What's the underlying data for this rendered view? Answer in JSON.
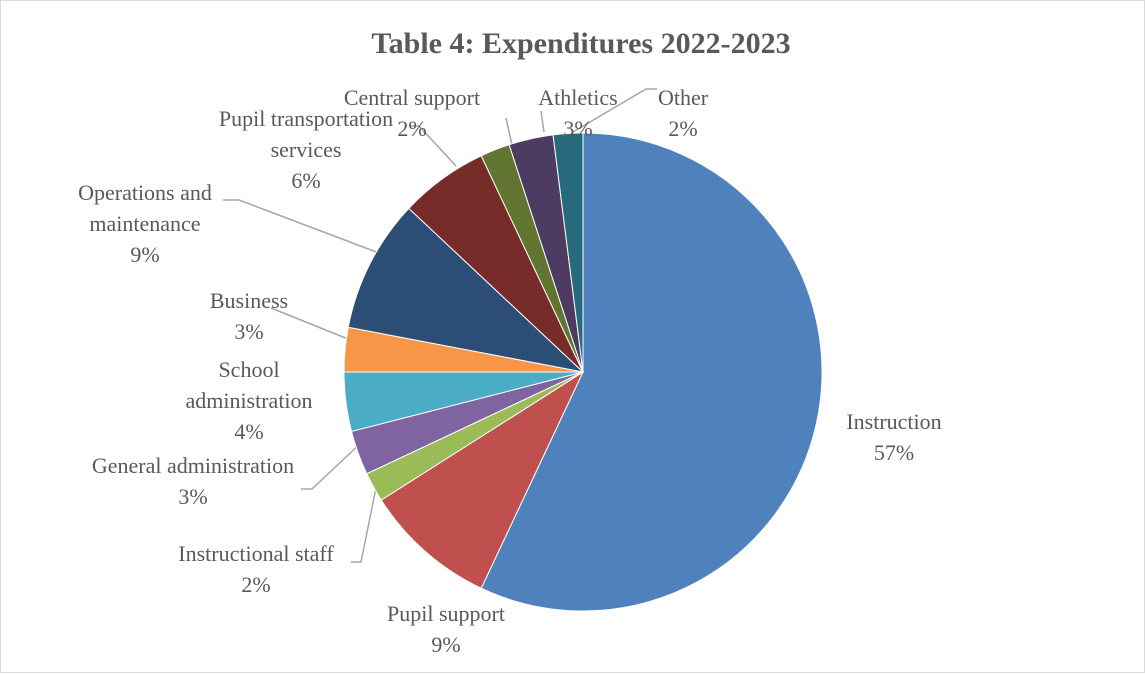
{
  "chart_data": {
    "type": "pie",
    "title": "Table 4: Expenditures 2022-2023",
    "slices": [
      {
        "label_lines": [
          "Instruction"
        ],
        "value": 57,
        "value_label": "57%",
        "color": "#4f81bd"
      },
      {
        "label_lines": [
          "Pupil support"
        ],
        "value": 9,
        "value_label": "9%",
        "color": "#c0504d"
      },
      {
        "label_lines": [
          "Instructional staff"
        ],
        "value": 2,
        "value_label": "2%",
        "color": "#9bbb59"
      },
      {
        "label_lines": [
          "General administration"
        ],
        "value": 3,
        "value_label": "3%",
        "color": "#8064a2"
      },
      {
        "label_lines": [
          "School",
          "administration"
        ],
        "value": 4,
        "value_label": "4%",
        "color": "#4bacc6"
      },
      {
        "label_lines": [
          "Business"
        ],
        "value": 3,
        "value_label": "3%",
        "color": "#f79646"
      },
      {
        "label_lines": [
          "Operations and",
          "maintenance"
        ],
        "value": 9,
        "value_label": "9%",
        "color": "#2c4d75"
      },
      {
        "label_lines": [
          "Pupil transportation",
          "services"
        ],
        "value": 6,
        "value_label": "6%",
        "color": "#772c2a"
      },
      {
        "label_lines": [
          "Central support"
        ],
        "value": 2,
        "value_label": "2%",
        "color": "#5f7530"
      },
      {
        "label_lines": [
          "Athletics"
        ],
        "value": 3,
        "value_label": "3%",
        "color": "#4d3b62"
      },
      {
        "label_lines": [
          "Other"
        ],
        "value": 2,
        "value_label": "2%",
        "color": "#276a7c"
      }
    ]
  }
}
